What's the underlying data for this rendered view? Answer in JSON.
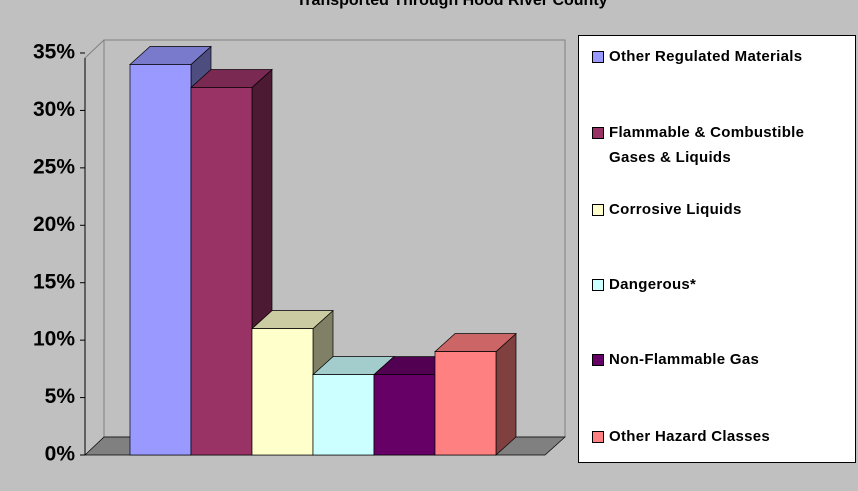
{
  "chart_data": {
    "type": "bar3d",
    "title": "Transported Through Hood River County",
    "series": [
      {
        "name": "Other Regulated Materials",
        "color": "#9999ff",
        "values": [
          34
        ]
      },
      {
        "name": "Flammable & Combustible Gases & Liquids",
        "color": "#993366",
        "values": [
          32
        ]
      },
      {
        "name": "Corrosive Liquids",
        "color": "#ffffcc",
        "values": [
          11
        ]
      },
      {
        "name": "Dangerous*",
        "color": "#ccffff",
        "values": [
          7
        ]
      },
      {
        "name": "Non-Flammable Gas",
        "color": "#660066",
        "values": [
          7
        ]
      },
      {
        "name": "Other Hazard Classes",
        "color": "#ff8080",
        "values": [
          9
        ]
      }
    ],
    "ylim": [
      0,
      35
    ],
    "yticks": [
      {
        "value": 0,
        "label": "0%"
      },
      {
        "value": 5,
        "label": "5%"
      },
      {
        "value": 10,
        "label": "10%"
      },
      {
        "value": 15,
        "label": "15%"
      },
      {
        "value": 20,
        "label": "20%"
      },
      {
        "value": 25,
        "label": "25%"
      },
      {
        "value": 30,
        "label": "30%"
      },
      {
        "value": 35,
        "label": "35%"
      }
    ],
    "legend": "right"
  }
}
